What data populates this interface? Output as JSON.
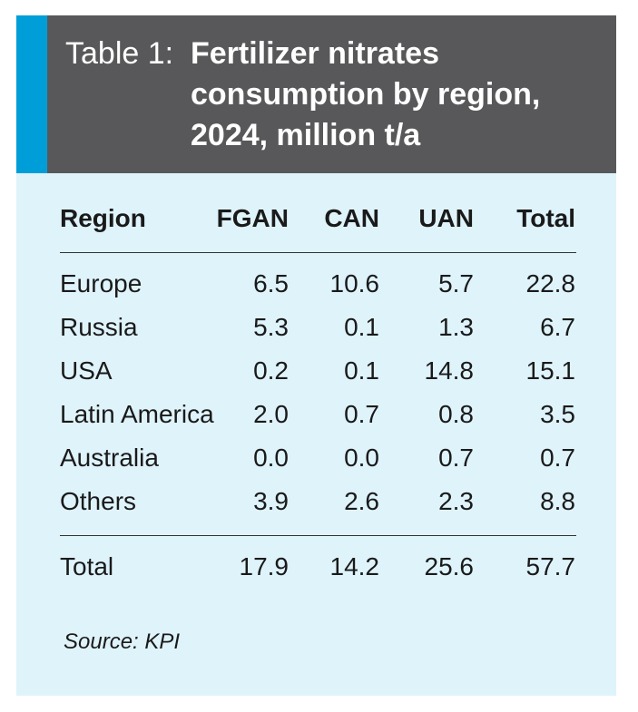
{
  "table": {
    "label": "Table 1:",
    "title_lines": [
      "Fertilizer nitrates",
      "consumption by region,",
      "2024, million t/a"
    ],
    "columns": [
      "Region",
      "FGAN",
      "CAN",
      "UAN",
      "Total"
    ],
    "rows": [
      [
        "Europe",
        "6.5",
        "10.6",
        "5.7",
        "22.8"
      ],
      [
        "Russia",
        "5.3",
        "0.1",
        "1.3",
        "6.7"
      ],
      [
        "USA",
        "0.2",
        "0.1",
        "14.8",
        "15.1"
      ],
      [
        "Latin America",
        "2.0",
        "0.7",
        "0.8",
        "3.5"
      ],
      [
        "Australia",
        "0.0",
        "0.0",
        "0.7",
        "0.7"
      ],
      [
        "Others",
        "3.9",
        "2.6",
        "2.3",
        "8.8"
      ]
    ],
    "total_row": [
      "Total",
      "17.9",
      "14.2",
      "25.6",
      "57.7"
    ],
    "source": "Source: KPI"
  },
  "colors": {
    "header_bg": "#58585a",
    "accent": "#009ed8",
    "card_bg": "#dff3fb"
  }
}
